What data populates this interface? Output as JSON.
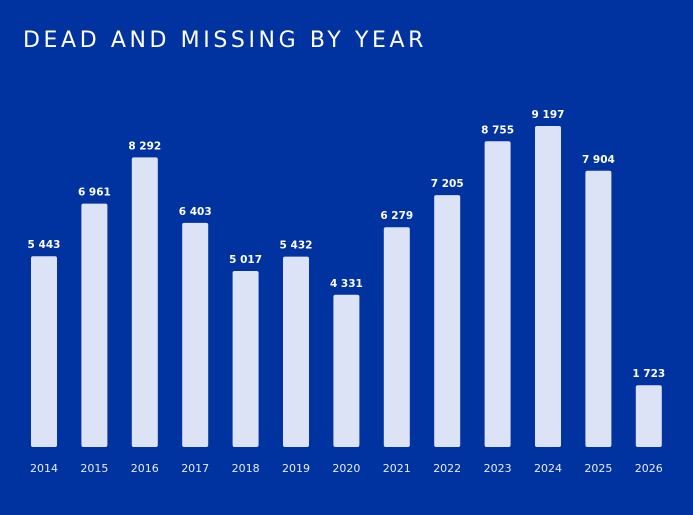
{
  "chart_data": {
    "type": "bar",
    "title": "DEAD AND MISSING BY YEAR",
    "xlabel": "",
    "ylabel": "",
    "categories": [
      "2014",
      "2015",
      "2016",
      "2017",
      "2018",
      "2019",
      "2020",
      "2021",
      "2022",
      "2023",
      "2024",
      "2025",
      "2026"
    ],
    "values": [
      5443,
      6961,
      8292,
      6403,
      5017,
      5432,
      4331,
      6279,
      7205,
      8755,
      9197,
      7904,
      1723
    ],
    "value_labels": [
      "5 443",
      "6 961",
      "8 292",
      "6 403",
      "5 017",
      "5 432",
      "4 331",
      "6 279",
      "7 205",
      "8 755",
      "9 197",
      "7 904",
      "1 723"
    ],
    "ylim": [
      0,
      9197
    ],
    "grid": false,
    "legend": "none",
    "colors": {
      "background": "#0033a0",
      "bar": "#dde3f6",
      "text": "#ffffff"
    }
  }
}
